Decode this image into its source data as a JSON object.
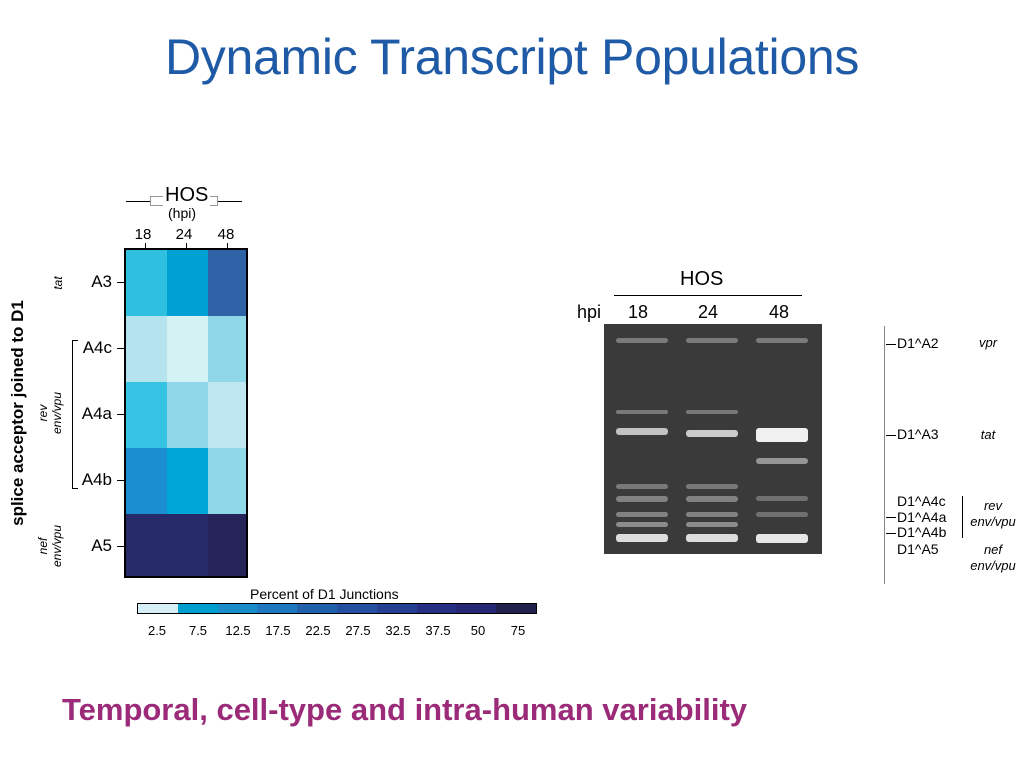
{
  "title": "Dynamic Transcript Populations",
  "subtitle": "Temporal, cell-type and intra-human variability",
  "heatmap": {
    "cell_line": "HOS",
    "unit": "(hpi)",
    "columns": [
      "18",
      "24",
      "48"
    ],
    "rows": [
      "A3",
      "A4c",
      "A4a",
      "A4b",
      "A5"
    ],
    "y_axis_label": "splice acceptor joined to D1",
    "gene_groups": {
      "tat": "tat",
      "rev_line1": "rev",
      "rev_line2": "env/vpu",
      "nef_line1": "nef",
      "nef_line2": "env/vpu"
    },
    "colorbar_title": "Percent of D1 Junctions",
    "colorbar_labels": [
      "2.5",
      "7.5",
      "12.5",
      "17.5",
      "22.5",
      "27.5",
      "32.5",
      "37.5",
      "50",
      "75"
    ],
    "colorbar_colors": [
      "#d6eef5",
      "#009ecf",
      "#1a8cc8",
      "#1f78bd",
      "#2160ab",
      "#24519f",
      "#253f93",
      "#262f84",
      "#272775",
      "#231f4d"
    ],
    "cell_colors": [
      [
        "#2fc0e0",
        "#009fd4",
        "#2e63a8"
      ],
      [
        "#b5e4ef",
        "#d4f1f4",
        "#8fd8e9"
      ],
      [
        "#36c3e4",
        "#8ed6e8",
        "#bfe7f1"
      ],
      [
        "#1b8ecf",
        "#00a7d6",
        "#8fd8ea"
      ],
      [
        "#272a68",
        "#272a68",
        "#26235a"
      ]
    ]
  },
  "gel": {
    "cell_line": "HOS",
    "hpi_label": "hpi",
    "lanes": [
      "18",
      "24",
      "48"
    ],
    "bands": [
      {
        "label": "D1^A2",
        "gene": "vpr"
      },
      {
        "label": "D1^A3",
        "gene": "tat"
      },
      {
        "label": "D1^A4c",
        "gene": ""
      },
      {
        "label": "D1^A4a",
        "gene": ""
      },
      {
        "label": "D1^A4b",
        "gene": ""
      },
      {
        "label": "D1^A5",
        "gene": ""
      }
    ],
    "gene_rev": "rev",
    "gene_env1": "env/vpu",
    "gene_nef": "nef",
    "gene_env2": "env/vpu"
  }
}
